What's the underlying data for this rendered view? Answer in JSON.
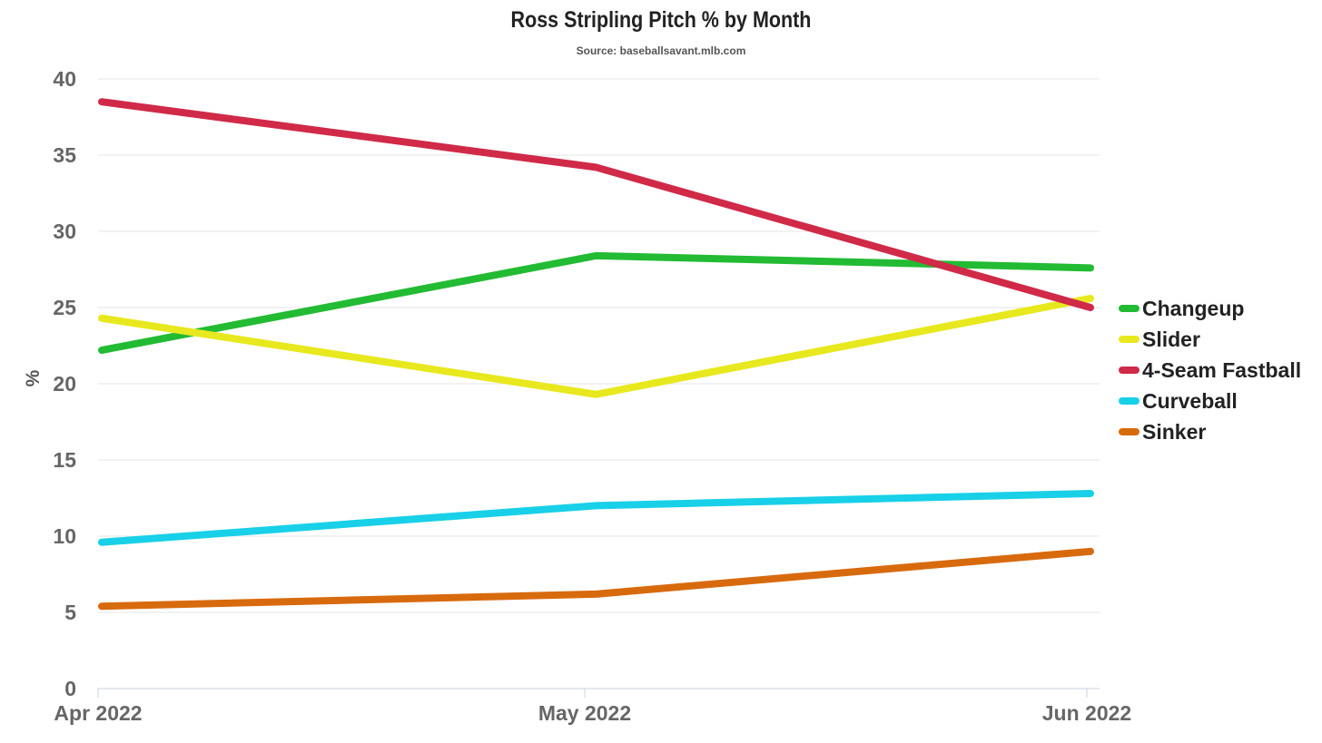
{
  "chart_data": {
    "type": "line",
    "title": "Ross Stripling Pitch % by Month",
    "subtitle": "Source: baseballsavant.mlb.com",
    "xlabel": "",
    "ylabel": "%",
    "categories": [
      "Apr 2022",
      "May 2022",
      "Jun 2022"
    ],
    "ylim": [
      0,
      40
    ],
    "yticks": [
      "0",
      "5",
      "10",
      "15",
      "20",
      "25",
      "30",
      "35",
      "40"
    ],
    "grid": true,
    "legend_position": "right",
    "series": [
      {
        "name": "Changeup",
        "color": "#22bb33",
        "values": [
          22.2,
          28.4,
          27.6
        ]
      },
      {
        "name": "Slider",
        "color": "#e8e81e",
        "values": [
          24.3,
          19.3,
          25.6
        ]
      },
      {
        "name": "4-Seam Fastball",
        "color": "#d02a48",
        "values": [
          38.5,
          34.2,
          25.0
        ]
      },
      {
        "name": "Curveball",
        "color": "#18d0e8",
        "values": [
          9.6,
          12.0,
          12.8
        ]
      },
      {
        "name": "Sinker",
        "color": "#d86a0e",
        "values": [
          5.4,
          6.2,
          9.0
        ]
      }
    ]
  }
}
